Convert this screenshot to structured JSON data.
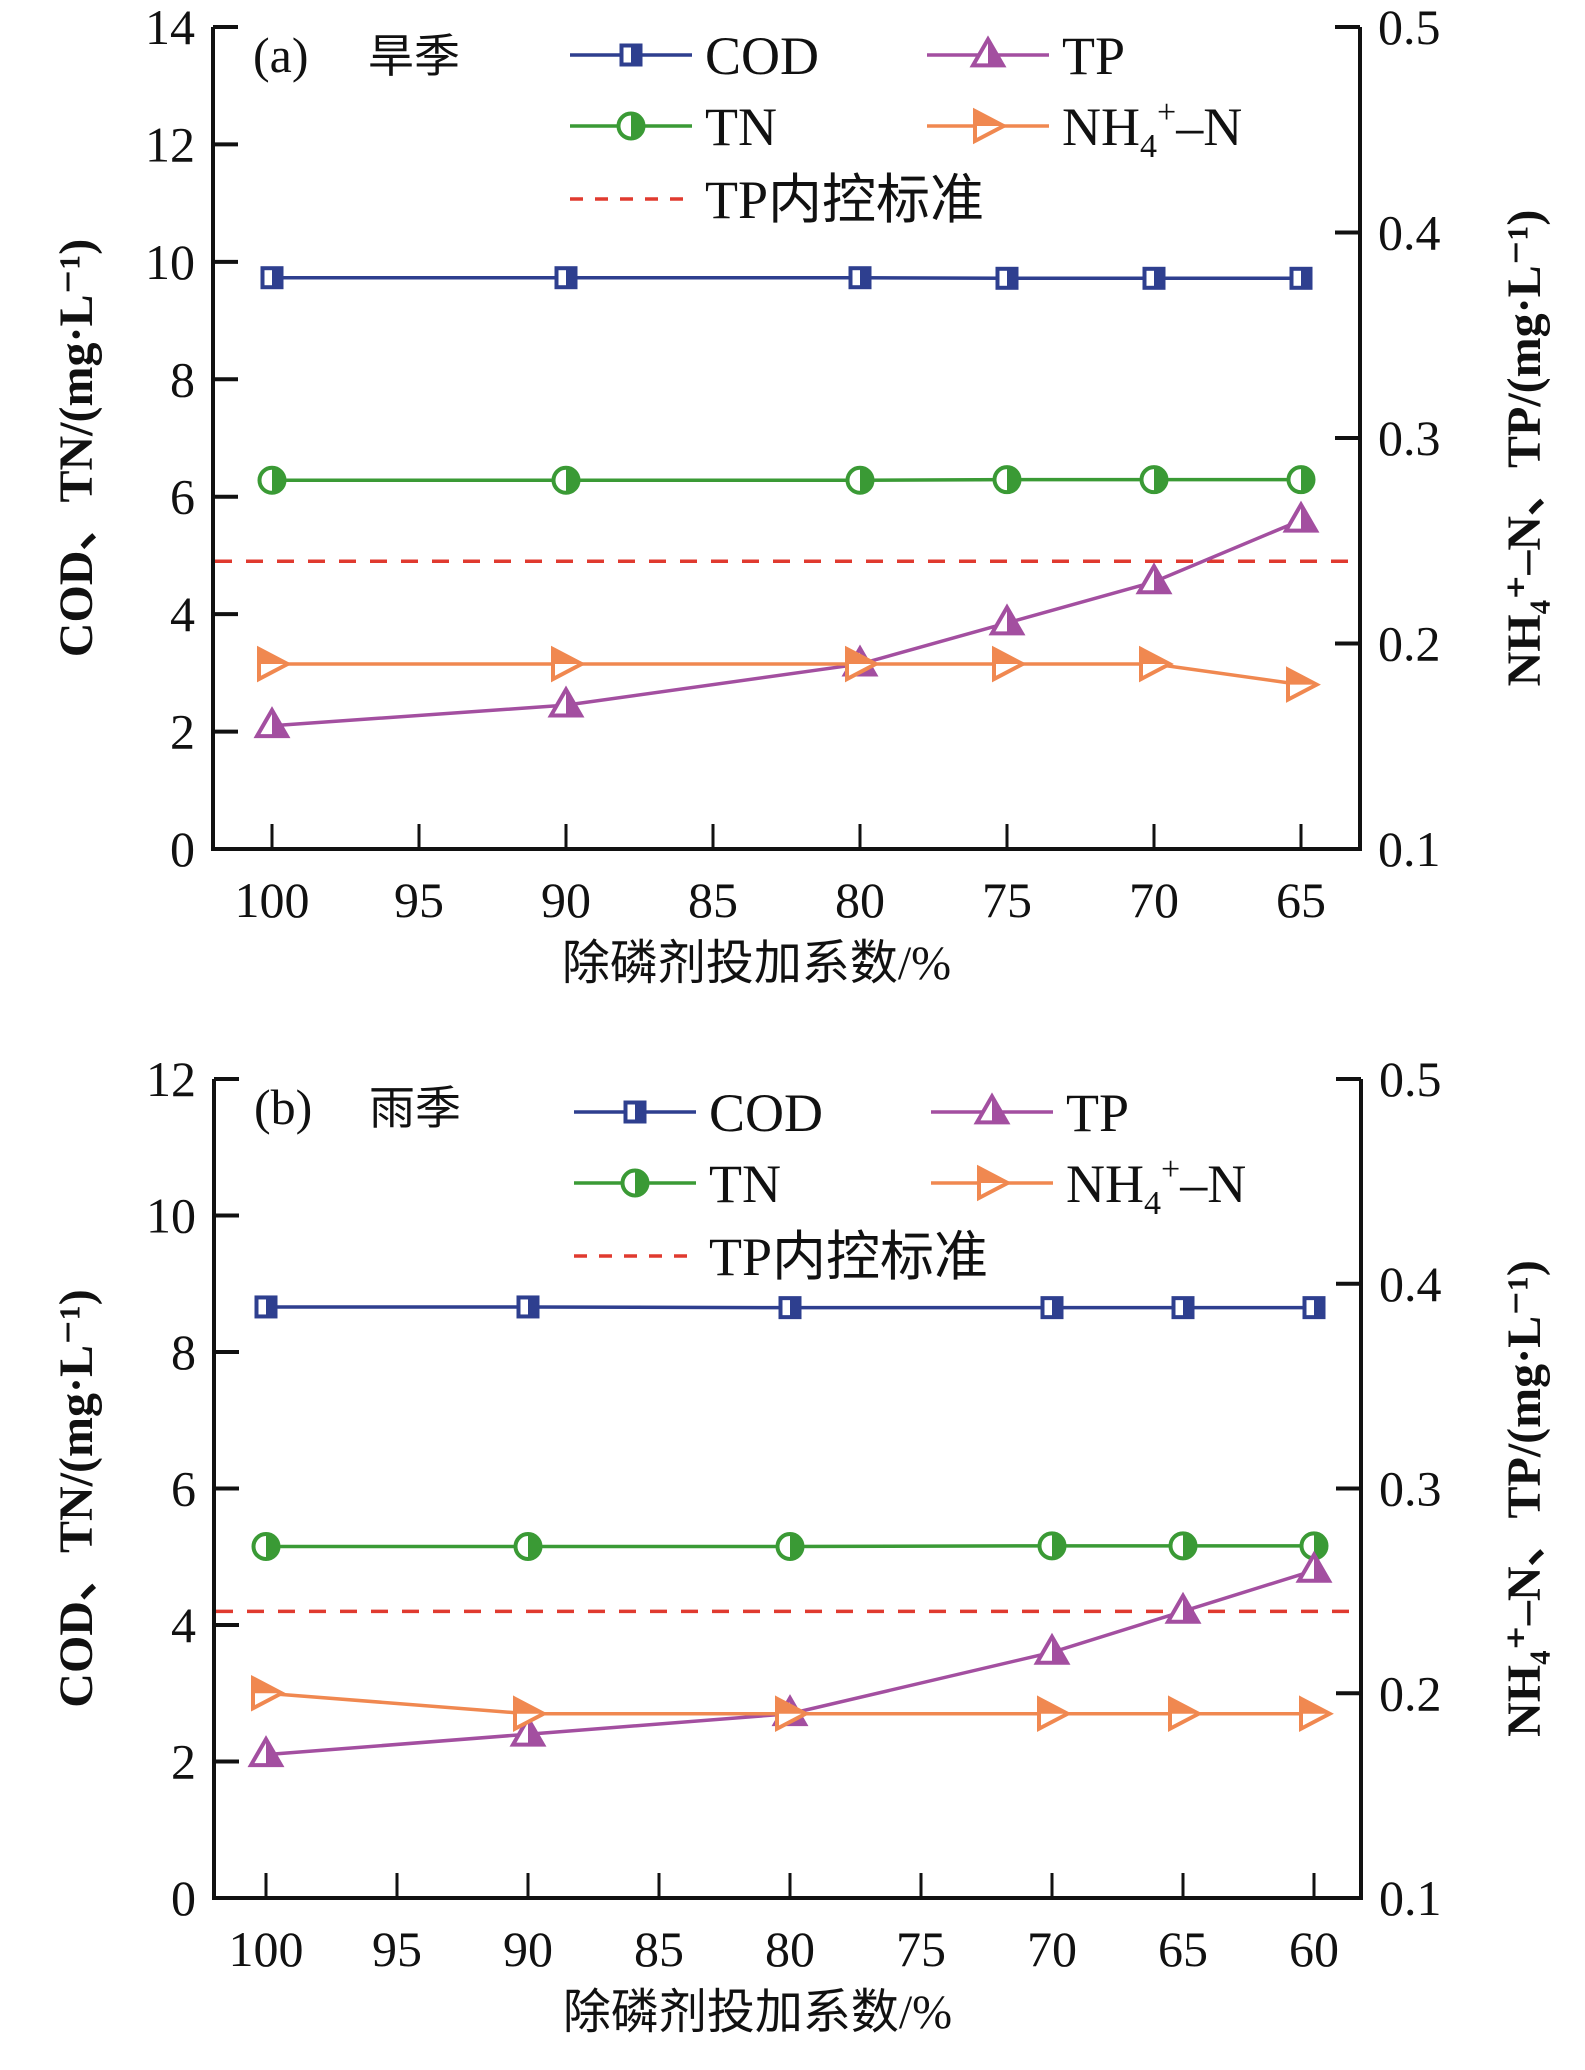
{
  "chart_data": [
    {
      "type": "line",
      "panel": "(a)",
      "title": "旱季",
      "xlabel": "除磷剂投加系数/%",
      "ylabel": "COD、TN/(mg·L⁻¹)",
      "ylabel_right": "NH₄⁺–N、TP/(mg·L⁻¹)",
      "x_tick_labels": [
        "100",
        "95",
        "90",
        "85",
        "80",
        "75",
        "70",
        "65"
      ],
      "x": [
        "100",
        "90",
        "80",
        "75",
        "70",
        "65"
      ],
      "ylim": [
        0,
        14
      ],
      "yticks": [
        0,
        2,
        4,
        6,
        8,
        10,
        12,
        14
      ],
      "ylim_right": [
        0.1,
        0.5
      ],
      "yticks_right": [
        "0.1",
        "0.2",
        "0.3",
        "0.4",
        "0.5"
      ],
      "series": [
        {
          "name": "COD",
          "axis": "left",
          "color": "#2e3f8f",
          "marker": "half-square",
          "values": [
            9.73,
            9.73,
            9.73,
            9.72,
            9.72,
            9.72
          ]
        },
        {
          "name": "TN",
          "axis": "left",
          "color": "#3a9a35",
          "marker": "half-circle",
          "values": [
            6.28,
            6.28,
            6.28,
            6.29,
            6.29,
            6.29
          ]
        },
        {
          "name": "TP",
          "axis": "right",
          "color": "#a34fa0",
          "marker": "half-triangle-up",
          "values": [
            0.16,
            0.17,
            0.19,
            0.21,
            0.23,
            0.26
          ]
        },
        {
          "name": "NH4+-N",
          "axis": "right",
          "color": "#f08850",
          "marker": "half-triangle-right",
          "values": [
            0.19,
            0.19,
            0.19,
            0.19,
            0.19,
            0.18
          ]
        }
      ],
      "reference_line": {
        "name": "TP内控标准",
        "axis": "right",
        "value": 0.24,
        "color": "#e03a2f",
        "style": "dashed"
      },
      "legend": {
        "placement": "top-center",
        "entries": [
          "COD",
          "TP",
          "TN",
          "NH4+-N",
          "TP内控标准"
        ]
      },
      "grid": false
    },
    {
      "type": "line",
      "panel": "(b)",
      "title": "雨季",
      "xlabel": "除磷剂投加系数/%",
      "ylabel": "COD、TN/(mg·L⁻¹)",
      "ylabel_right": "NH₄⁺–N、TP/(mg·L⁻¹)",
      "x_tick_labels": [
        "100",
        "95",
        "90",
        "85",
        "80",
        "75",
        "70",
        "65",
        "60"
      ],
      "x": [
        "100",
        "90",
        "80",
        "70",
        "65",
        "60"
      ],
      "ylim": [
        0,
        12
      ],
      "yticks": [
        0,
        2,
        4,
        6,
        8,
        10,
        12
      ],
      "ylim_right": [
        0.1,
        0.5
      ],
      "yticks_right": [
        "0.1",
        "0.2",
        "0.3",
        "0.4",
        "0.5"
      ],
      "series": [
        {
          "name": "COD",
          "axis": "left",
          "color": "#2e3f8f",
          "marker": "half-square",
          "values": [
            8.66,
            8.66,
            8.65,
            8.65,
            8.65,
            8.65
          ]
        },
        {
          "name": "TN",
          "axis": "left",
          "color": "#3a9a35",
          "marker": "half-circle",
          "values": [
            5.15,
            5.15,
            5.15,
            5.16,
            5.16,
            5.16
          ]
        },
        {
          "name": "TP",
          "axis": "right",
          "color": "#a34fa0",
          "marker": "half-triangle-up",
          "values": [
            0.17,
            0.18,
            0.19,
            0.22,
            0.24,
            0.26
          ]
        },
        {
          "name": "NH4+-N",
          "axis": "right",
          "color": "#f08850",
          "marker": "half-triangle-right",
          "values": [
            0.2,
            0.19,
            0.19,
            0.19,
            0.19,
            0.19
          ]
        }
      ],
      "reference_line": {
        "name": "TP内控标准",
        "axis": "right",
        "value": 0.24,
        "color": "#e03a2f",
        "style": "dashed"
      },
      "legend": {
        "placement": "top-center",
        "entries": [
          "COD",
          "TP",
          "TN",
          "NH4+-N",
          "TP内控标准"
        ]
      },
      "grid": false
    }
  ],
  "legend_labels": {
    "cod": "COD",
    "tp": "TP",
    "tn": "TN",
    "nh4_main": "NH",
    "nh4_sub": "4",
    "nh4_sup": "+",
    "nh4_tail": "–N",
    "standard": "TP内控标准"
  }
}
